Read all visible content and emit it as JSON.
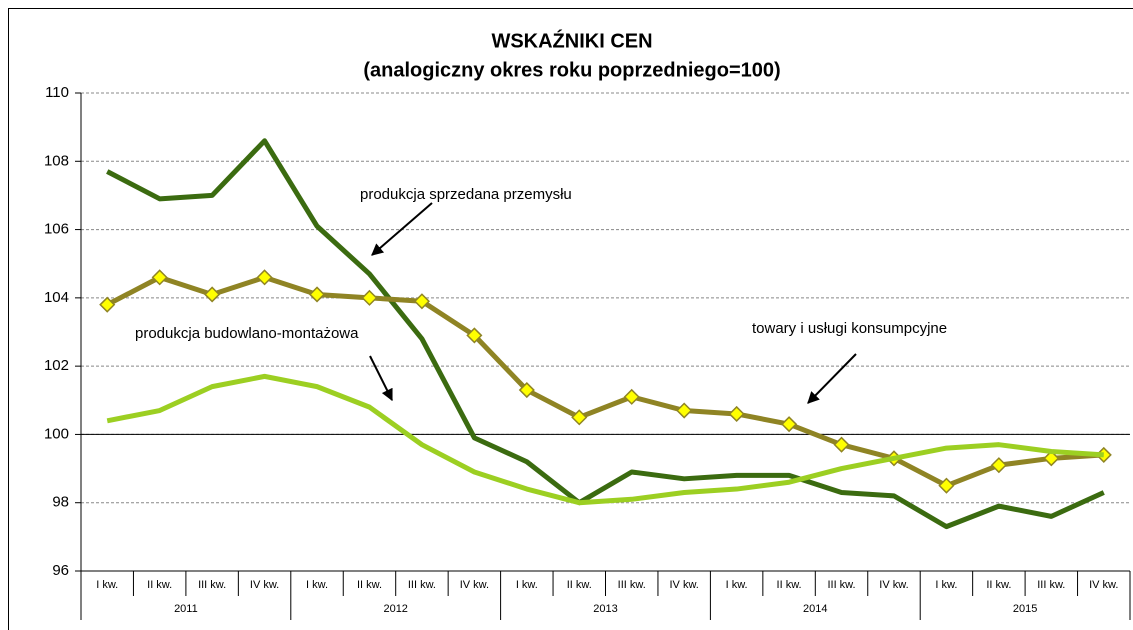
{
  "chart_data": {
    "type": "line",
    "title": "WSKAŹNIKI CEN",
    "subtitle": "(analogiczny okres roku poprzedniego=100)",
    "categories": [
      "I kw.",
      "II kw.",
      "III kw.",
      "IV kw.",
      "I kw.",
      "II kw.",
      "III kw.",
      "IV kw.",
      "I kw.",
      "II kw.",
      "III kw.",
      "IV kw.",
      "I kw.",
      "II kw.",
      "III kw.",
      "IV kw.",
      "I kw.",
      "II kw.",
      "III kw.",
      "IV kw."
    ],
    "category_groups": [
      "2011",
      "2012",
      "2013",
      "2014",
      "2015"
    ],
    "series": [
      {
        "name": "produkcja sprzedana przemysłu",
        "color": "#3b6b10",
        "values": [
          107.7,
          106.9,
          107.0,
          108.6,
          106.1,
          104.7,
          102.8,
          99.9,
          99.2,
          98.0,
          98.9,
          98.7,
          98.8,
          98.8,
          98.3,
          98.2,
          97.3,
          97.9,
          97.6,
          98.3
        ]
      },
      {
        "name": "towary i usługi konsumpcyjne",
        "color": "#8f8424",
        "marker": "diamond",
        "marker_color": "#ffff00",
        "values": [
          103.8,
          104.6,
          104.1,
          104.6,
          104.1,
          104.0,
          103.9,
          102.9,
          101.3,
          100.5,
          101.1,
          100.7,
          100.6,
          100.3,
          99.7,
          99.3,
          98.5,
          99.1,
          99.3,
          99.4
        ]
      },
      {
        "name": "produkcja budowlano-montażowa",
        "color": "#9ccf22",
        "values": [
          100.4,
          100.7,
          101.4,
          101.7,
          101.4,
          100.8,
          99.7,
          98.9,
          98.4,
          98.0,
          98.1,
          98.3,
          98.4,
          98.6,
          99.0,
          99.3,
          99.6,
          99.7,
          99.5,
          99.4
        ]
      }
    ],
    "ylim": [
      96,
      110
    ],
    "yticks": [
      96,
      98,
      100,
      102,
      104,
      106,
      108,
      110
    ],
    "grid": true,
    "reference_line": 100
  }
}
